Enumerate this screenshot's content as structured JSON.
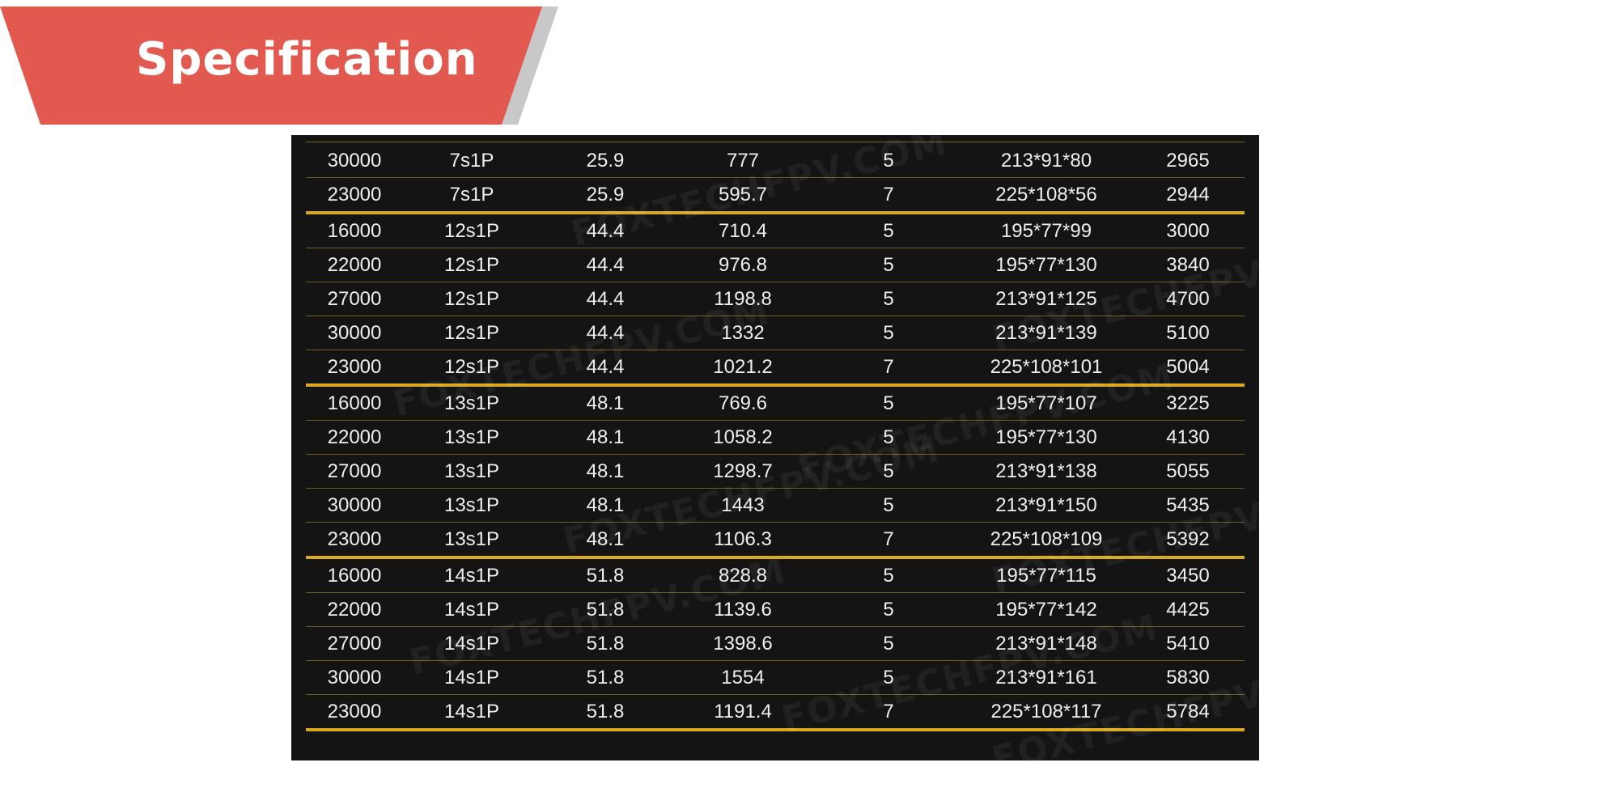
{
  "header": {
    "title": "Specification"
  },
  "watermark_text": "FOXTECHFPV.COM",
  "accent_color": "#e2594f",
  "divider_color": "#d9a91f",
  "table": {
    "rows": [
      {
        "cells": [
          "30000",
          "7s1P",
          "25.9",
          "777",
          "5",
          "213*91*80",
          "2965"
        ],
        "group_end": false
      },
      {
        "cells": [
          "23000",
          "7s1P",
          "25.9",
          "595.7",
          "7",
          "225*108*56",
          "2944"
        ],
        "group_end": true
      },
      {
        "cells": [
          "16000",
          "12s1P",
          "44.4",
          "710.4",
          "5",
          "195*77*99",
          "3000"
        ],
        "group_end": false
      },
      {
        "cells": [
          "22000",
          "12s1P",
          "44.4",
          "976.8",
          "5",
          "195*77*130",
          "3840"
        ],
        "group_end": false
      },
      {
        "cells": [
          "27000",
          "12s1P",
          "44.4",
          "1198.8",
          "5",
          "213*91*125",
          "4700"
        ],
        "group_end": false
      },
      {
        "cells": [
          "30000",
          "12s1P",
          "44.4",
          "1332",
          "5",
          "213*91*139",
          "5100"
        ],
        "group_end": false
      },
      {
        "cells": [
          "23000",
          "12s1P",
          "44.4",
          "1021.2",
          "7",
          "225*108*101",
          "5004"
        ],
        "group_end": true
      },
      {
        "cells": [
          "16000",
          "13s1P",
          "48.1",
          "769.6",
          "5",
          "195*77*107",
          "3225"
        ],
        "group_end": false
      },
      {
        "cells": [
          "22000",
          "13s1P",
          "48.1",
          "1058.2",
          "5",
          "195*77*130",
          "4130"
        ],
        "group_end": false
      },
      {
        "cells": [
          "27000",
          "13s1P",
          "48.1",
          "1298.7",
          "5",
          "213*91*138",
          "5055"
        ],
        "group_end": false
      },
      {
        "cells": [
          "30000",
          "13s1P",
          "48.1",
          "1443",
          "5",
          "213*91*150",
          "5435"
        ],
        "group_end": false
      },
      {
        "cells": [
          "23000",
          "13s1P",
          "48.1",
          "1106.3",
          "7",
          "225*108*109",
          "5392"
        ],
        "group_end": true
      },
      {
        "cells": [
          "16000",
          "14s1P",
          "51.8",
          "828.8",
          "5",
          "195*77*115",
          "3450"
        ],
        "group_end": false
      },
      {
        "cells": [
          "22000",
          "14s1P",
          "51.8",
          "1139.6",
          "5",
          "195*77*142",
          "4425"
        ],
        "group_end": false
      },
      {
        "cells": [
          "27000",
          "14s1P",
          "51.8",
          "1398.6",
          "5",
          "213*91*148",
          "5410"
        ],
        "group_end": false
      },
      {
        "cells": [
          "30000",
          "14s1P",
          "51.8",
          "1554",
          "5",
          "213*91*161",
          "5830"
        ],
        "group_end": false
      },
      {
        "cells": [
          "23000",
          "14s1P",
          "51.8",
          "1191.4",
          "7",
          "225*108*117",
          "5784"
        ],
        "group_end": true
      }
    ]
  }
}
